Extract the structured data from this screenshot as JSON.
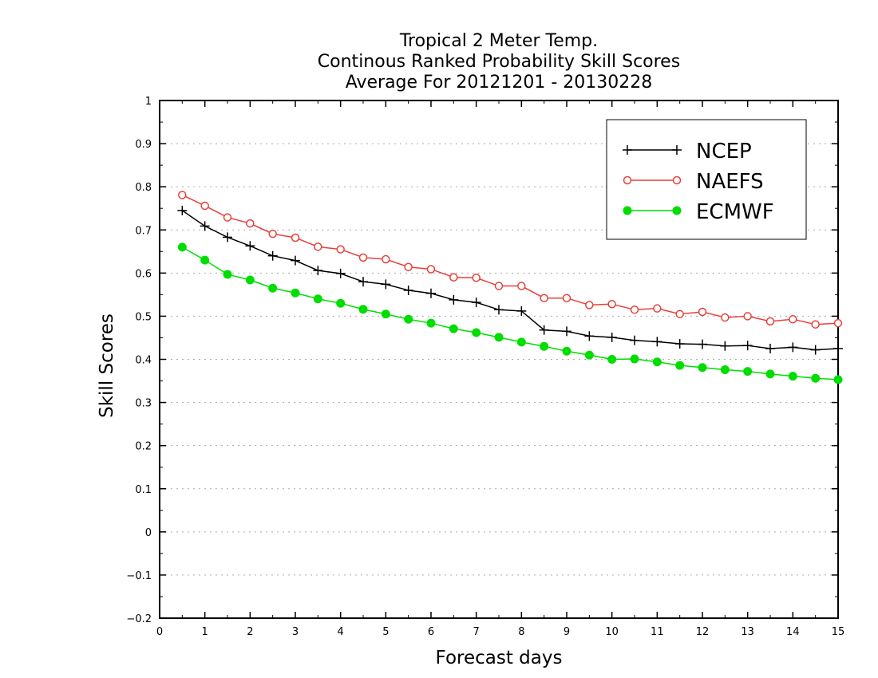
{
  "chart_data": {
    "type": "line",
    "title": [
      "Tropical 2 Meter Temp.",
      "Continous Ranked Probability Skill Scores",
      "Average For 20121201 - 20130228"
    ],
    "xlabel": "Forecast days",
    "ylabel": "Skill Scores",
    "xlim": [
      0,
      15
    ],
    "ylim": [
      -0.2,
      1
    ],
    "x_ticks": [
      0,
      1,
      2,
      3,
      4,
      5,
      6,
      7,
      8,
      9,
      10,
      11,
      12,
      13,
      14,
      15
    ],
    "x_tick_labels": [
      "0",
      "1",
      "2",
      "3",
      "4",
      "5",
      "6",
      "7",
      "8",
      "9",
      "10",
      "11",
      "12",
      "13",
      "14",
      "15"
    ],
    "y_ticks": [
      -0.2,
      -0.1,
      0,
      0.1,
      0.2,
      0.3,
      0.4,
      0.5,
      0.6,
      0.7,
      0.8,
      0.9,
      1
    ],
    "y_tick_labels": [
      "−0.2",
      "−0.1",
      "0",
      "0.1",
      "0.2",
      "0.3",
      "0.4",
      "0.5",
      "0.6",
      "0.7",
      "0.8",
      "0.9",
      "1"
    ],
    "grid": "horizontal dotted",
    "legend_position": "top-right",
    "x": [
      0.5,
      1.0,
      1.5,
      2.0,
      2.5,
      3.0,
      3.5,
      4.0,
      4.5,
      5.0,
      5.5,
      6.0,
      6.5,
      7.0,
      7.5,
      8.0,
      8.5,
      9.0,
      9.5,
      10.0,
      10.5,
      11.0,
      11.5,
      12.0,
      12.5,
      13.0,
      13.5,
      14.0,
      14.5,
      15.0
    ],
    "series": [
      {
        "name": "NCEP",
        "color": "#000000",
        "marker": "plus",
        "values": [
          0.745,
          0.709,
          0.683,
          0.663,
          0.64,
          0.629,
          0.606,
          0.599,
          0.58,
          0.574,
          0.56,
          0.553,
          0.538,
          0.532,
          0.515,
          0.512,
          0.468,
          0.465,
          0.454,
          0.451,
          0.444,
          0.441,
          0.436,
          0.435,
          0.431,
          0.432,
          0.425,
          0.428,
          0.422,
          0.425
        ]
      },
      {
        "name": "NAEFS",
        "color": "#e8403a",
        "marker": "open-circle",
        "values": [
          0.781,
          0.756,
          0.729,
          0.715,
          0.691,
          0.682,
          0.661,
          0.655,
          0.636,
          0.632,
          0.614,
          0.609,
          0.59,
          0.589,
          0.57,
          0.57,
          0.542,
          0.542,
          0.526,
          0.528,
          0.515,
          0.518,
          0.505,
          0.51,
          0.497,
          0.5,
          0.488,
          0.493,
          0.481,
          0.484
        ]
      },
      {
        "name": "ECMWF",
        "color": "#00dd00",
        "marker": "filled-circle",
        "values": [
          0.66,
          0.63,
          0.597,
          0.584,
          0.565,
          0.554,
          0.54,
          0.53,
          0.516,
          0.505,
          0.493,
          0.484,
          0.471,
          0.462,
          0.451,
          0.44,
          0.43,
          0.419,
          0.41,
          0.4,
          0.401,
          0.394,
          0.386,
          0.381,
          0.376,
          0.372,
          0.366,
          0.361,
          0.356,
          0.353
        ]
      }
    ]
  }
}
